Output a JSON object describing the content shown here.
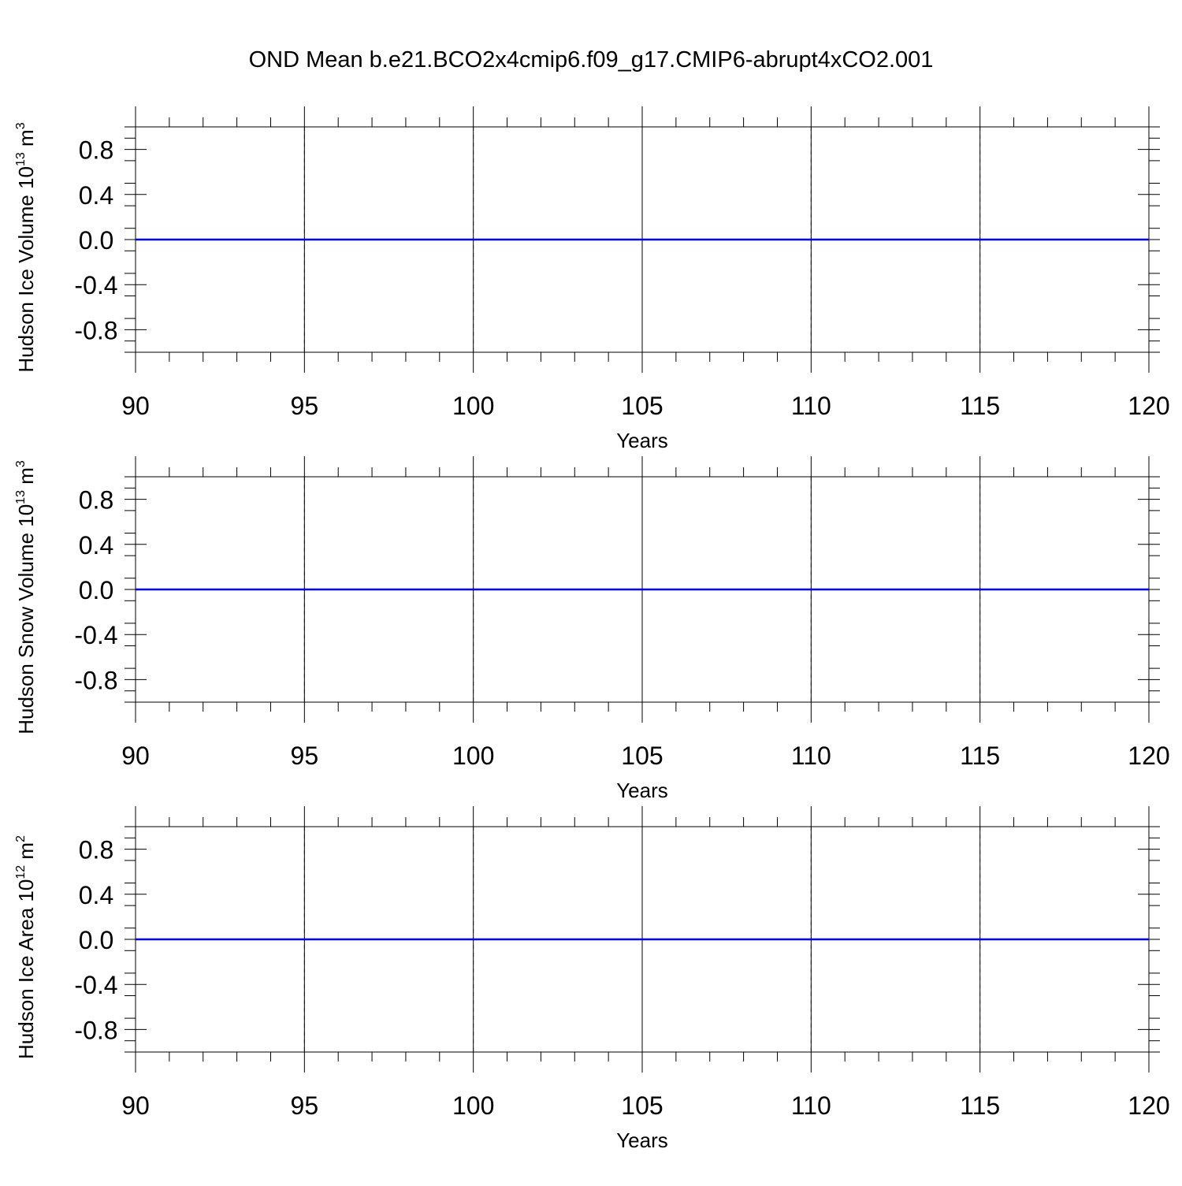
{
  "title": "OND Mean b.e21.BCO2x4cmip6.f09_g17.CMIP6-abrupt4xCO2.001",
  "chart_data": [
    {
      "type": "line",
      "ylabel": {
        "text": "Hudson Ice Volume 10",
        "exponent": "13",
        "unit": " m",
        "unit_exponent": "3"
      },
      "xlabel": "Years",
      "xlim": [
        90,
        120
      ],
      "ylim": [
        -1,
        1
      ],
      "xticks": [
        90,
        95,
        100,
        105,
        110,
        115,
        120
      ],
      "yticks": [
        "0.8",
        "0.4",
        "0.0",
        "-0.4",
        "-0.8"
      ],
      "grid": "vertical-dashed",
      "series": [
        {
          "color": "#0000ff",
          "x": [
            90,
            120
          ],
          "values": [
            0,
            0
          ]
        }
      ]
    },
    {
      "type": "line",
      "ylabel": {
        "text": "Hudson Snow Volume 10",
        "exponent": "13",
        "unit": " m",
        "unit_exponent": "3"
      },
      "xlabel": "Years",
      "xlim": [
        90,
        120
      ],
      "ylim": [
        -1,
        1
      ],
      "xticks": [
        90,
        95,
        100,
        105,
        110,
        115,
        120
      ],
      "yticks": [
        "0.8",
        "0.4",
        "0.0",
        "-0.4",
        "-0.8"
      ],
      "grid": "vertical-dashed",
      "series": [
        {
          "color": "#0000ff",
          "x": [
            90,
            120
          ],
          "values": [
            0,
            0
          ]
        }
      ]
    },
    {
      "type": "line",
      "ylabel": {
        "text": "Hudson Ice Area 10",
        "exponent": "12",
        "unit": " m",
        "unit_exponent": "2"
      },
      "xlabel": "Years",
      "xlim": [
        90,
        120
      ],
      "ylim": [
        -1,
        1
      ],
      "xticks": [
        90,
        95,
        100,
        105,
        110,
        115,
        120
      ],
      "yticks": [
        "0.8",
        "0.4",
        "0.0",
        "-0.4",
        "-0.8"
      ],
      "grid": "vertical-dashed",
      "series": [
        {
          "color": "#0000ff",
          "x": [
            90,
            120
          ],
          "values": [
            0,
            0
          ]
        }
      ]
    }
  ]
}
